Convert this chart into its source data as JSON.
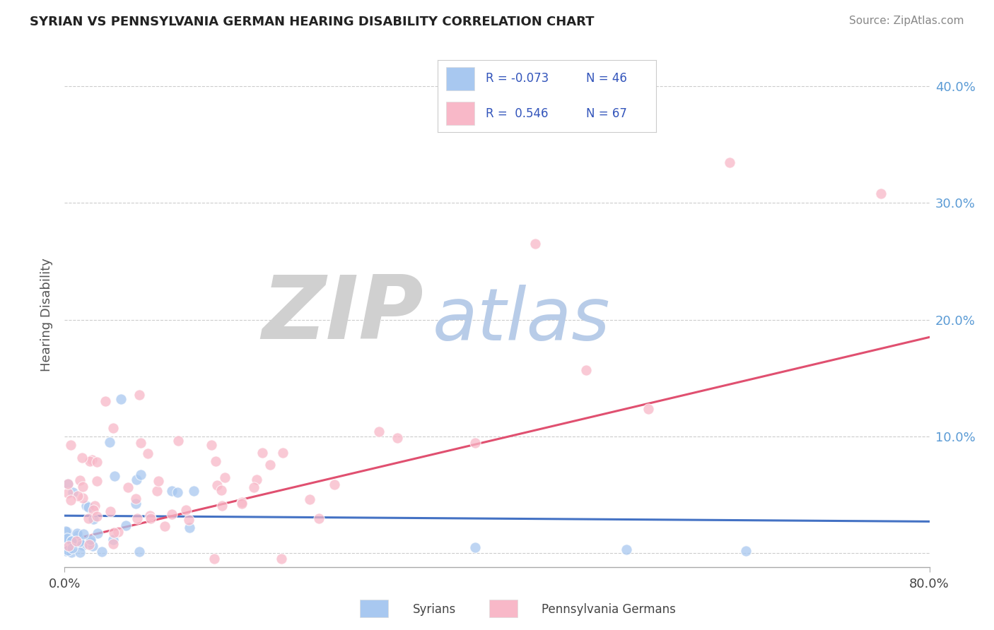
{
  "title": "SYRIAN VS PENNSYLVANIA GERMAN HEARING DISABILITY CORRELATION CHART",
  "source": "Source: ZipAtlas.com",
  "ylabel": "Hearing Disability",
  "legend_r": [
    -0.073,
    0.546
  ],
  "legend_n": [
    46,
    67
  ],
  "blue_color": "#a8c8f0",
  "pink_color": "#f8b8c8",
  "blue_line_color": "#4472c4",
  "pink_line_color": "#e05070",
  "background_color": "#ffffff",
  "watermark_zip_color": "#d0d0d0",
  "watermark_atlas_color": "#b8cce8",
  "yticks": [
    0.0,
    0.1,
    0.2,
    0.3,
    0.4
  ],
  "ytick_labels": [
    "",
    "10.0%",
    "20.0%",
    "30.0%",
    "40.0%"
  ],
  "xmin": 0.0,
  "xmax": 0.8,
  "ymin": -0.012,
  "ymax": 0.42,
  "title_fontsize": 13,
  "source_fontsize": 11
}
